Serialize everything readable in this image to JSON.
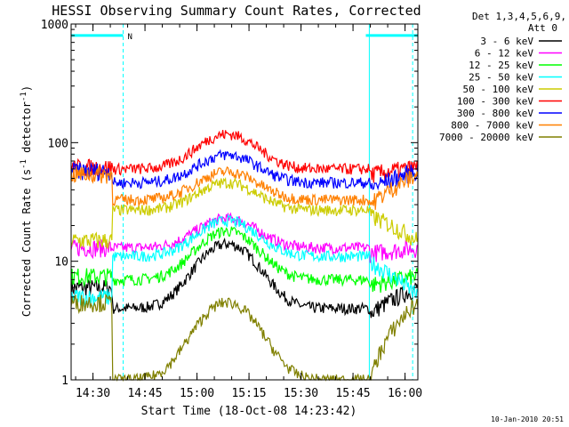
{
  "chart_data": {
    "type": "line",
    "title": "HESSI Observing Summary Count Rates, Corrected",
    "xlabel": "Start Time (18-Oct-08 14:23:42)",
    "ylabel_main": "Corrected Count Rate (s",
    "ylabel_sup1": "-1",
    "ylabel_mid": " detector",
    "ylabel_sup2": "-1",
    "ylabel_end": ")",
    "x_minutes_range": [
      0,
      100
    ],
    "xticks": [
      {
        "label": "14:30",
        "min": 6.3
      },
      {
        "label": "14:45",
        "min": 21.3
      },
      {
        "label": "15:00",
        "min": 36.3
      },
      {
        "label": "15:15",
        "min": 51.3
      },
      {
        "label": "15:30",
        "min": 66.3
      },
      {
        "label": "15:45",
        "min": 81.3
      },
      {
        "label": "16:00",
        "min": 96.3
      }
    ],
    "ylim": [
      1,
      1000
    ],
    "yscale": "log",
    "yticks": [
      {
        "label": "1",
        "value": 1
      },
      {
        "label": "10",
        "value": 10
      },
      {
        "label": "100",
        "value": 100
      },
      {
        "label": "1000",
        "value": 1000
      }
    ],
    "legend_header": [
      "Det 1,3,4,5,6,9,",
      "Att 0"
    ],
    "flag_label": "N",
    "flag_level": 800,
    "night_minutes": [
      [
        0,
        15.0
      ],
      [
        85.0,
        100
      ]
    ],
    "gap_minutes": [
      12.0,
      86.0
    ],
    "series": [
      {
        "name": "3 - 6 keV",
        "color": "#000000",
        "base": 4.0,
        "peak": 14,
        "pre": 6.0
      },
      {
        "name": "6 - 12 keV",
        "color": "#ff00ff",
        "base": 13,
        "peak": 23,
        "pre": 13
      },
      {
        "name": "12 - 25 keV",
        "color": "#00ff00",
        "base": 7.0,
        "peak": 18,
        "pre": 7.5
      },
      {
        "name": "25 - 50 keV",
        "color": "#00ffff",
        "base": 11,
        "peak": 22,
        "pre": 5.0
      },
      {
        "name": "50 - 100 keV",
        "color": "#cccc00",
        "base": 27,
        "peak": 46,
        "pre": 15
      },
      {
        "name": "100 - 300 keV",
        "color": "#ff0000",
        "base": 60,
        "peak": 118,
        "pre": 62
      },
      {
        "name": "300 - 800 keV",
        "color": "#0000ff",
        "base": 46,
        "peak": 79,
        "pre": 58
      },
      {
        "name": "800 - 7000 keV",
        "color": "#ff8000",
        "base": 33,
        "peak": 57,
        "pre": 54
      },
      {
        "name": "7000 - 20000 keV",
        "color": "#808000",
        "base": 1.0,
        "peak": 4.5,
        "pre": 4.5
      }
    ]
  },
  "footer": {
    "timestamp": "10-Jan-2010 20:51"
  }
}
